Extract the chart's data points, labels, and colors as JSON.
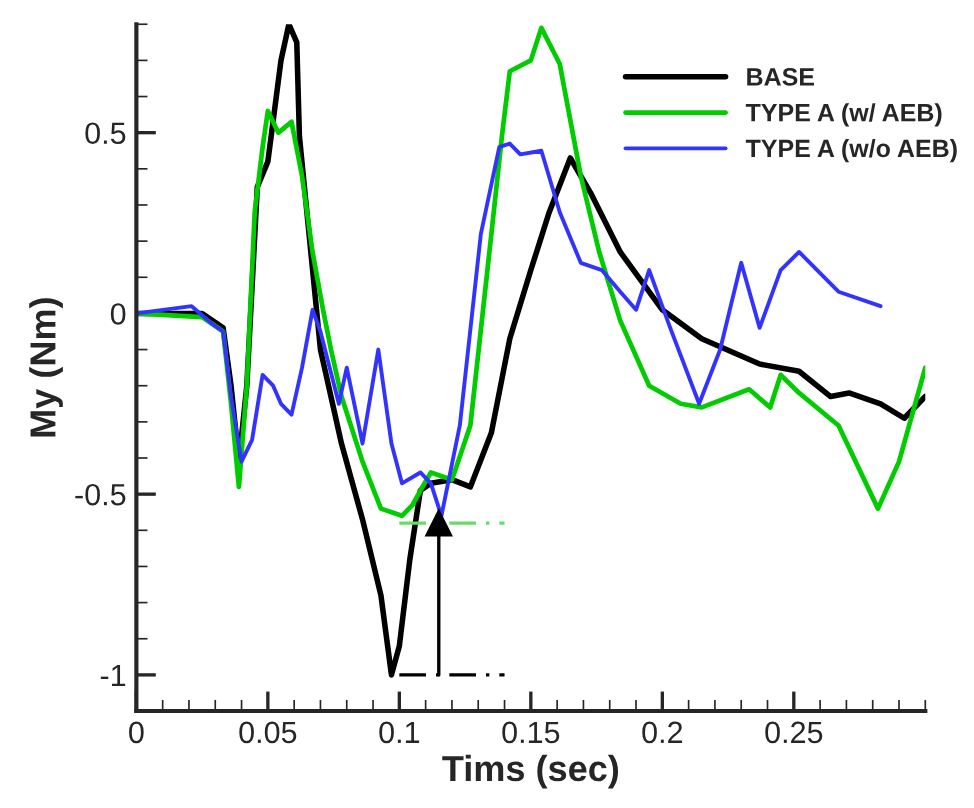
{
  "chart_data": {
    "type": "line",
    "xlabel": "Tims (sec)",
    "ylabel": "My (Nm)",
    "xlim": [
      0,
      0.3
    ],
    "ylim": [
      -1.1,
      0.8
    ],
    "xticks": [
      0,
      0.05,
      0.1,
      0.15,
      0.2,
      0.25
    ],
    "yticks": [
      -1,
      -0.5,
      0,
      0.5
    ],
    "grid": false,
    "legend": "top right",
    "series": [
      {
        "name": "BASE",
        "color": "#000000",
        "x": [
          0,
          0.025,
          0.033,
          0.036,
          0.039,
          0.042,
          0.046,
          0.05,
          0.055,
          0.058,
          0.061,
          0.062,
          0.07,
          0.078,
          0.086,
          0.093,
          0.097,
          0.1,
          0.104,
          0.108,
          0.112,
          0.12,
          0.127,
          0.135,
          0.142,
          0.15,
          0.157,
          0.165,
          0.173,
          0.184,
          0.2,
          0.215,
          0.237,
          0.252,
          0.264,
          0.271,
          0.283,
          0.292,
          0.3
        ],
        "values": [
          0,
          0,
          -0.04,
          -0.2,
          -0.41,
          -0.2,
          0.35,
          0.42,
          0.7,
          0.8,
          0.75,
          0.49,
          -0.1,
          -0.36,
          -0.57,
          -0.78,
          -1.0,
          -0.92,
          -0.68,
          -0.49,
          -0.47,
          -0.46,
          -0.48,
          -0.33,
          -0.07,
          0.12,
          0.28,
          0.43,
          0.33,
          0.17,
          0.01,
          -0.07,
          -0.14,
          -0.16,
          -0.23,
          -0.22,
          -0.25,
          -0.29,
          -0.23
        ]
      },
      {
        "name": "TYPE A (w/ AEB)",
        "color": "#00cc00",
        "x": [
          0,
          0.025,
          0.033,
          0.036,
          0.039,
          0.042,
          0.045,
          0.048,
          0.05,
          0.054,
          0.059,
          0.063,
          0.067,
          0.071,
          0.074,
          0.078,
          0.086,
          0.093,
          0.101,
          0.105,
          0.108,
          0.112,
          0.12,
          0.127,
          0.135,
          0.139,
          0.142,
          0.15,
          0.154,
          0.161,
          0.169,
          0.176,
          0.184,
          0.195,
          0.207,
          0.215,
          0.233,
          0.241,
          0.245,
          0.252,
          0.267,
          0.282,
          0.29,
          0.3
        ],
        "values": [
          0,
          -0.01,
          -0.05,
          -0.25,
          -0.48,
          -0.2,
          0.28,
          0.46,
          0.56,
          0.5,
          0.53,
          0.38,
          0.17,
          0.01,
          -0.1,
          -0.23,
          -0.41,
          -0.54,
          -0.56,
          -0.53,
          -0.49,
          -0.44,
          -0.46,
          -0.31,
          0.22,
          0.49,
          0.67,
          0.7,
          0.79,
          0.69,
          0.38,
          0.17,
          -0.02,
          -0.2,
          -0.25,
          -0.26,
          -0.21,
          -0.26,
          -0.17,
          -0.22,
          -0.31,
          -0.54,
          -0.41,
          -0.15
        ]
      },
      {
        "name": "TYPE A (w/o AEB)",
        "color": "#3333ff",
        "x": [
          0,
          0.021,
          0.029,
          0.033,
          0.036,
          0.04,
          0.044,
          0.048,
          0.052,
          0.055,
          0.059,
          0.063,
          0.067,
          0.07,
          0.077,
          0.08,
          0.086,
          0.092,
          0.097,
          0.101,
          0.108,
          0.112,
          0.116,
          0.123,
          0.131,
          0.138,
          0.142,
          0.146,
          0.154,
          0.161,
          0.169,
          0.177,
          0.184,
          0.19,
          0.195,
          0.203,
          0.214,
          0.222,
          0.23,
          0.237,
          0.245,
          0.252,
          0.267,
          0.283
        ],
        "values": [
          0,
          0.02,
          -0.03,
          -0.05,
          -0.23,
          -0.41,
          -0.35,
          -0.17,
          -0.2,
          -0.25,
          -0.28,
          -0.15,
          0.01,
          -0.05,
          -0.25,
          -0.15,
          -0.36,
          -0.1,
          -0.36,
          -0.47,
          -0.44,
          -0.47,
          -0.56,
          -0.31,
          0.22,
          0.46,
          0.47,
          0.44,
          0.45,
          0.28,
          0.14,
          0.12,
          0.06,
          0.01,
          0.12,
          -0.04,
          -0.25,
          -0.1,
          0.14,
          -0.04,
          0.12,
          0.17,
          0.06,
          0.02
        ]
      },
      {
        "color": "#66dd66",
        "line_style": "dashed",
        "x": [
          0.1,
          0.14
        ],
        "values": [
          -0.58,
          -0.58
        ]
      },
      {
        "color": "#000000",
        "line_style": "dashed",
        "x": [
          0.1,
          0.14
        ],
        "values": [
          -1.0,
          -1.0
        ]
      },
      {
        "color": "#000000",
        "marker": "triangle",
        "x": [
          0.115,
          0.115
        ],
        "values": [
          -1.0,
          -0.58
        ]
      }
    ]
  }
}
